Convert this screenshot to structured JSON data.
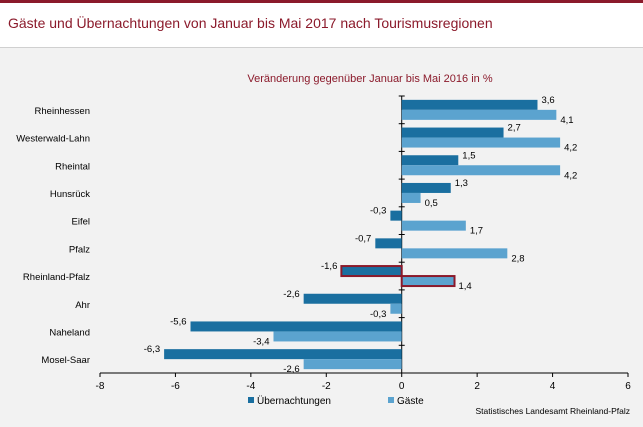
{
  "header": {
    "title": "Gäste und Übernachtungen von Januar bis Mai 2017 nach Tourismusregionen"
  },
  "chart_data": {
    "type": "bar",
    "orientation": "horizontal",
    "subtitle": "Veränderung gegenüber Januar bis Mai 2016 in %",
    "categories": [
      "Rheinhessen",
      "Westerwald-Lahn",
      "Rheintal",
      "Hunsrück",
      "Eifel",
      "Pfalz",
      "Rheinland-Pfalz",
      "Ahr",
      "Naheland",
      "Mosel-Saar"
    ],
    "series": [
      {
        "name": "Übernachtungen",
        "color": "#1a6fa0",
        "values": [
          3.6,
          2.7,
          1.5,
          1.3,
          -0.3,
          -0.7,
          -1.6,
          -2.6,
          -5.6,
          -6.3
        ],
        "labels": [
          "3,6",
          "2,7",
          "1,5",
          "1,3",
          "-0,3",
          "-0,7",
          "-1,6",
          "-2,6",
          "-5,6",
          "-6,3"
        ]
      },
      {
        "name": "Gäste",
        "color": "#5ba3cf",
        "values": [
          4.1,
          4.2,
          4.2,
          0.5,
          1.7,
          2.8,
          1.4,
          -0.3,
          -3.4,
          -2.6
        ],
        "labels": [
          "4,1",
          "4,2",
          "4,2",
          "0,5",
          "1,7",
          "2,8",
          "1,4",
          "-0,3",
          "-3,4",
          "-2,6"
        ]
      }
    ],
    "highlight_category": "Rheinland-Pfalz",
    "highlight_color": "#8b1a2b",
    "xlim": [
      -8,
      6
    ],
    "xticks": [
      -8,
      -6,
      -4,
      -2,
      0,
      2,
      4,
      6
    ],
    "xtick_labels": [
      "-8",
      "-6",
      "-4",
      "-2",
      "0",
      "2",
      "4",
      "6"
    ],
    "legend_position": "bottom",
    "source": "Statistisches Landesamt Rheinland-Pfalz"
  }
}
